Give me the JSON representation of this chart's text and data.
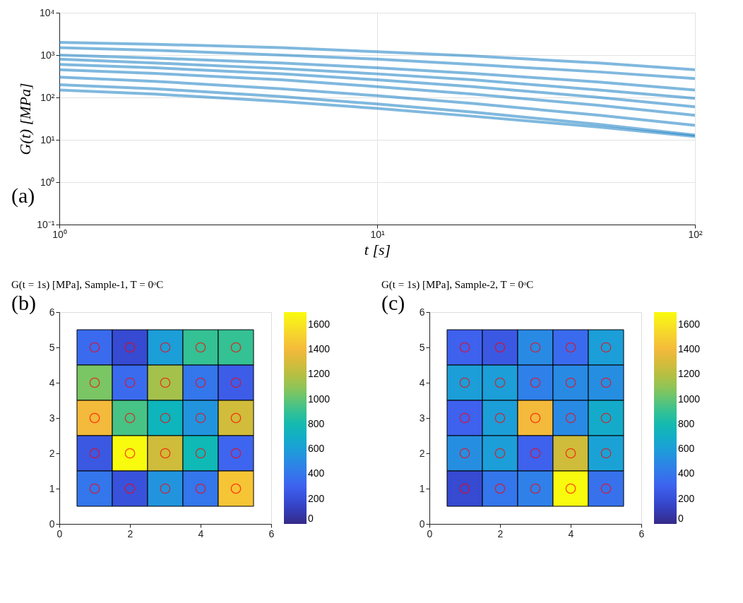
{
  "chart_data": [
    {
      "type": "line",
      "xlabel": "t [s]",
      "ylabel": "G(t) [MPa]",
      "annotations": [
        "(a)"
      ],
      "log": "xy",
      "grid": true,
      "xlim": [
        1,
        100
      ],
      "ylim": [
        0.1,
        10000
      ],
      "xticks": [
        {
          "value": 1,
          "label": "10⁰"
        },
        {
          "value": 10,
          "label": "10¹"
        },
        {
          "value": 100,
          "label": "10²"
        }
      ],
      "yticks": [
        {
          "value": 0.1,
          "label": "10⁻¹"
        },
        {
          "value": 1,
          "label": "10⁰"
        },
        {
          "value": 10,
          "label": "10¹"
        },
        {
          "value": 100,
          "label": "10²"
        },
        {
          "value": 1000,
          "label": "10³"
        },
        {
          "value": 10000,
          "label": "10⁴"
        }
      ],
      "x": [
        1,
        2,
        5,
        10,
        20,
        50,
        100
      ],
      "series": [
        {
          "color": "#0072bd",
          "values": [
            2000,
            1800,
            1500,
            1200,
            950,
            650,
            450
          ]
        },
        {
          "color": "#0072bd",
          "values": [
            1500,
            1300,
            1000,
            800,
            600,
            400,
            280
          ]
        },
        {
          "color": "#0072bd",
          "values": [
            1000,
            850,
            650,
            500,
            370,
            230,
            150
          ]
        },
        {
          "color": "#0072bd",
          "values": [
            800,
            650,
            480,
            360,
            260,
            150,
            95
          ]
        },
        {
          "color": "#0072bd",
          "values": [
            600,
            500,
            360,
            260,
            180,
            100,
            60
          ]
        },
        {
          "color": "#0072bd",
          "values": [
            450,
            370,
            260,
            180,
            120,
            65,
            38
          ]
        },
        {
          "color": "#0072bd",
          "values": [
            300,
            240,
            160,
            110,
            72,
            38,
            22
          ]
        },
        {
          "color": "#0072bd",
          "values": [
            200,
            160,
            105,
            70,
            45,
            23,
            13
          ]
        },
        {
          "color": "#0072bd",
          "values": [
            150,
            120,
            80,
            55,
            36,
            20,
            12
          ]
        }
      ]
    },
    {
      "type": "heatmap",
      "title": "G(t = 1s) [MPa],  Sample-1,  T = 0ᵒC",
      "annotations": [
        "(b)"
      ],
      "x": [
        1,
        2,
        3,
        4,
        5
      ],
      "y": [
        5,
        4,
        3,
        2,
        1
      ],
      "xlim": [
        0,
        6
      ],
      "ylim": [
        0,
        6
      ],
      "xticks": [
        0,
        2,
        4,
        6
      ],
      "yticks": [
        0,
        1,
        2,
        3,
        4,
        5,
        6
      ],
      "clim": [
        0,
        1700
      ],
      "cticks": [
        0,
        200,
        400,
        600,
        800,
        1000,
        1200,
        1400,
        1600
      ],
      "cells": [
        [
          350,
          180,
          600,
          900,
          900
        ],
        [
          1050,
          350,
          1150,
          400,
          280
        ],
        [
          1400,
          950,
          750,
          550,
          1280
        ],
        [
          250,
          1700,
          1270,
          780,
          320
        ],
        [
          400,
          220,
          550,
          400,
          1450
        ]
      ],
      "series": [
        {
          "type": "scatter",
          "color": "#ff0000",
          "marker": "circle",
          "x": [
            1,
            2,
            3,
            4,
            5,
            1,
            2,
            3,
            4,
            5,
            1,
            2,
            3,
            4,
            5,
            1,
            2,
            3,
            4,
            5,
            1,
            2,
            3,
            4,
            5
          ],
          "values": [
            5,
            5,
            5,
            5,
            5,
            4,
            4,
            4,
            4,
            4,
            3,
            3,
            3,
            3,
            3,
            2,
            2,
            2,
            2,
            2,
            1,
            1,
            1,
            1,
            1
          ]
        }
      ]
    },
    {
      "type": "heatmap",
      "title": "G(t = 1s) [MPa],  Sample-2,  T = 0ᵒC",
      "annotations": [
        "(c)"
      ],
      "x": [
        1,
        2,
        3,
        4,
        5
      ],
      "y": [
        5,
        4,
        3,
        2,
        1
      ],
      "xlim": [
        0,
        6
      ],
      "ylim": [
        0,
        6
      ],
      "xticks": [
        0,
        2,
        4,
        6
      ],
      "yticks": [
        0,
        1,
        2,
        3,
        4,
        5,
        6
      ],
      "clim": [
        0,
        1700
      ],
      "cticks": [
        0,
        200,
        400,
        600,
        800,
        1000,
        1200,
        1400,
        1600
      ],
      "cells": [
        [
          300,
          250,
          500,
          350,
          600
        ],
        [
          600,
          600,
          450,
          500,
          520
        ],
        [
          300,
          600,
          1400,
          500,
          680
        ],
        [
          520,
          600,
          300,
          1270,
          620
        ],
        [
          180,
          400,
          450,
          1700,
          380
        ]
      ],
      "series": [
        {
          "type": "scatter",
          "color": "#ff0000",
          "marker": "circle",
          "x": [
            1,
            2,
            3,
            4,
            5,
            1,
            2,
            3,
            4,
            5,
            1,
            2,
            3,
            4,
            5,
            1,
            2,
            3,
            4,
            5,
            1,
            2,
            3,
            4,
            5
          ],
          "values": [
            5,
            5,
            5,
            5,
            5,
            4,
            4,
            4,
            4,
            4,
            3,
            3,
            3,
            3,
            3,
            2,
            2,
            2,
            2,
            2,
            1,
            1,
            1,
            1,
            1
          ]
        }
      ]
    }
  ]
}
